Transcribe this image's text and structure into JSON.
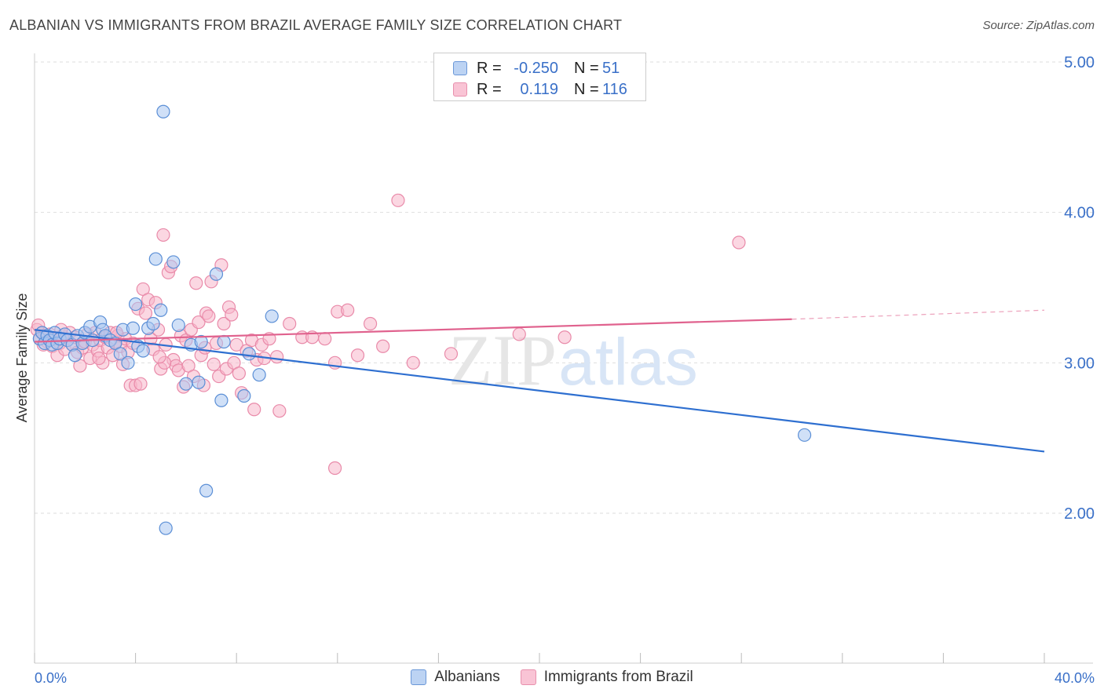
{
  "header": {
    "title": "ALBANIAN VS IMMIGRANTS FROM BRAZIL AVERAGE FAMILY SIZE CORRELATION CHART",
    "source": "Source: ZipAtlas.com"
  },
  "watermark": {
    "zip": "ZIP",
    "atlas": "atlas"
  },
  "legend": {
    "rows": [
      {
        "r_label": "R =",
        "r_value": "-0.250",
        "n_label": "N =",
        "n_value": "51"
      },
      {
        "r_label": "R =",
        "r_value": "0.119",
        "n_label": "N =",
        "n_value": "116"
      }
    ]
  },
  "chart_data": {
    "type": "scatter",
    "title": "ALBANIAN VS IMMIGRANTS FROM BRAZIL AVERAGE FAMILY SIZE CORRELATION CHART",
    "xlabel": "",
    "ylabel": "Average Family Size",
    "xlim": [
      0,
      40
    ],
    "ylim": [
      1.0,
      5.15
    ],
    "x_tick_labels": [
      "0.0%",
      "40.0%"
    ],
    "y_ticks": [
      2.0,
      3.0,
      4.0,
      5.0
    ],
    "y_tick_labels": [
      "2.00",
      "3.00",
      "4.00",
      "5.00"
    ],
    "grid": "horizontal dashed",
    "legend_position": "top-center",
    "colors": {
      "albanians_fill": "#a9c6f0",
      "albanians_stroke": "#5b8fd6",
      "albanians_line": "#2e6fd0",
      "brazil_fill": "#f7b6cb",
      "brazil_stroke": "#e98aa9",
      "brazil_line": "#e0628e",
      "axis_label": "#3a70c8"
    },
    "series": [
      {
        "name": "Albanians",
        "trend": {
          "x": [
            0,
            40
          ],
          "y": [
            3.22,
            2.41
          ],
          "dashed_after": null
        },
        "points": [
          [
            0.2,
            3.16
          ],
          [
            0.3,
            3.2
          ],
          [
            0.4,
            3.13
          ],
          [
            0.5,
            3.18
          ],
          [
            0.6,
            3.15
          ],
          [
            0.7,
            3.12
          ],
          [
            0.8,
            3.2
          ],
          [
            0.9,
            3.13
          ],
          [
            1.0,
            3.16
          ],
          [
            1.2,
            3.19
          ],
          [
            1.3,
            3.15
          ],
          [
            1.5,
            3.12
          ],
          [
            1.6,
            3.05
          ],
          [
            1.7,
            3.18
          ],
          [
            1.9,
            3.13
          ],
          [
            2.0,
            3.2
          ],
          [
            2.2,
            3.24
          ],
          [
            2.3,
            3.15
          ],
          [
            2.6,
            3.27
          ],
          [
            2.7,
            3.22
          ],
          [
            2.8,
            3.18
          ],
          [
            3.0,
            3.15
          ],
          [
            3.2,
            3.13
          ],
          [
            3.4,
            3.06
          ],
          [
            3.5,
            3.22
          ],
          [
            3.7,
            3.0
          ],
          [
            3.9,
            3.23
          ],
          [
            4.0,
            3.39
          ],
          [
            4.1,
            3.11
          ],
          [
            4.3,
            3.08
          ],
          [
            4.5,
            3.23
          ],
          [
            4.7,
            3.26
          ],
          [
            4.8,
            3.69
          ],
          [
            5.0,
            3.35
          ],
          [
            5.1,
            4.67
          ],
          [
            5.2,
            1.9
          ],
          [
            5.5,
            3.67
          ],
          [
            5.7,
            3.25
          ],
          [
            6.0,
            2.86
          ],
          [
            6.2,
            3.12
          ],
          [
            6.5,
            2.87
          ],
          [
            6.6,
            3.14
          ],
          [
            6.8,
            2.15
          ],
          [
            7.2,
            3.59
          ],
          [
            7.4,
            2.75
          ],
          [
            7.5,
            3.14
          ],
          [
            8.3,
            2.78
          ],
          [
            8.5,
            3.06
          ],
          [
            8.9,
            2.92
          ],
          [
            9.4,
            3.31
          ],
          [
            30.5,
            2.52
          ]
        ]
      },
      {
        "name": "Immigrants from Brazil",
        "trend": {
          "x": [
            0,
            30
          ],
          "y": [
            3.14,
            3.29
          ],
          "dashed_to": [
            40,
            3.35
          ]
        },
        "points": [
          [
            0.1,
            3.22
          ],
          [
            0.2,
            3.16
          ],
          [
            0.3,
            3.2
          ],
          [
            0.4,
            3.18
          ],
          [
            0.5,
            3.14
          ],
          [
            0.6,
            3.19
          ],
          [
            0.7,
            3.11
          ],
          [
            0.8,
            3.16
          ],
          [
            0.9,
            3.05
          ],
          [
            1.0,
            3.13
          ],
          [
            1.1,
            3.18
          ],
          [
            1.2,
            3.09
          ],
          [
            1.3,
            3.15
          ],
          [
            1.4,
            3.2
          ],
          [
            1.5,
            3.12
          ],
          [
            1.6,
            3.17
          ],
          [
            1.7,
            3.07
          ],
          [
            1.8,
            2.98
          ],
          [
            1.9,
            3.1
          ],
          [
            2.0,
            3.14
          ],
          [
            2.1,
            3.19
          ],
          [
            2.2,
            3.03
          ],
          [
            2.3,
            3.12
          ],
          [
            2.4,
            3.2
          ],
          [
            2.5,
            3.08
          ],
          [
            2.6,
            3.15
          ],
          [
            2.7,
            3.0
          ],
          [
            2.8,
            3.17
          ],
          [
            2.9,
            3.1
          ],
          [
            3.0,
            3.2
          ],
          [
            3.1,
            3.05
          ],
          [
            3.2,
            3.14
          ],
          [
            3.3,
            3.18
          ],
          [
            3.4,
            3.11
          ],
          [
            3.5,
            2.99
          ],
          [
            3.6,
            3.16
          ],
          [
            3.7,
            3.07
          ],
          [
            3.8,
            2.85
          ],
          [
            3.9,
            3.13
          ],
          [
            4.0,
            2.85
          ],
          [
            4.1,
            3.36
          ],
          [
            4.2,
            2.86
          ],
          [
            4.3,
            3.49
          ],
          [
            4.4,
            3.33
          ],
          [
            4.5,
            3.42
          ],
          [
            4.6,
            3.16
          ],
          [
            4.7,
            3.09
          ],
          [
            4.8,
            3.4
          ],
          [
            4.9,
            3.22
          ],
          [
            5.0,
            2.96
          ],
          [
            5.1,
            3.85
          ],
          [
            5.2,
            3.12
          ],
          [
            5.3,
            3.6
          ],
          [
            5.4,
            3.64
          ],
          [
            5.5,
            3.02
          ],
          [
            5.6,
            2.98
          ],
          [
            5.7,
            2.95
          ],
          [
            5.8,
            3.18
          ],
          [
            5.9,
            2.84
          ],
          [
            6.0,
            3.15
          ],
          [
            6.1,
            2.98
          ],
          [
            6.2,
            3.22
          ],
          [
            6.3,
            2.91
          ],
          [
            6.4,
            3.53
          ],
          [
            6.5,
            3.27
          ],
          [
            6.6,
            3.05
          ],
          [
            6.7,
            2.85
          ],
          [
            6.8,
            3.33
          ],
          [
            6.9,
            3.31
          ],
          [
            7.0,
            3.54
          ],
          [
            7.1,
            2.99
          ],
          [
            7.2,
            3.13
          ],
          [
            7.3,
            2.91
          ],
          [
            7.4,
            3.65
          ],
          [
            7.5,
            3.26
          ],
          [
            7.6,
            2.96
          ],
          [
            7.7,
            3.37
          ],
          [
            7.8,
            3.32
          ],
          [
            7.9,
            3.0
          ],
          [
            8.0,
            3.12
          ],
          [
            8.1,
            2.93
          ],
          [
            8.2,
            2.8
          ],
          [
            8.4,
            3.08
          ],
          [
            8.6,
            3.15
          ],
          [
            8.7,
            2.69
          ],
          [
            8.8,
            3.02
          ],
          [
            9.0,
            3.12
          ],
          [
            9.1,
            3.03
          ],
          [
            9.3,
            3.16
          ],
          [
            9.6,
            3.04
          ],
          [
            9.7,
            2.68
          ],
          [
            10.1,
            3.26
          ],
          [
            10.6,
            3.17
          ],
          [
            11.0,
            3.17
          ],
          [
            11.5,
            3.16
          ],
          [
            11.9,
            3.0
          ],
          [
            11.9,
            2.3
          ],
          [
            12.0,
            3.34
          ],
          [
            12.4,
            3.35
          ],
          [
            13.8,
            3.11
          ],
          [
            13.3,
            3.26
          ],
          [
            14.4,
            4.08
          ],
          [
            15.0,
            3.0
          ],
          [
            16.5,
            3.06
          ],
          [
            19.2,
            3.19
          ],
          [
            21.0,
            3.17
          ],
          [
            27.9,
            3.8
          ],
          [
            0.15,
            3.25
          ],
          [
            0.35,
            3.12
          ],
          [
            1.05,
            3.22
          ],
          [
            2.55,
            3.03
          ],
          [
            3.25,
            3.2
          ],
          [
            5.15,
            3.0
          ],
          [
            6.75,
            3.1
          ],
          [
            12.8,
            3.05
          ],
          [
            4.95,
            3.04
          ]
        ]
      }
    ]
  }
}
